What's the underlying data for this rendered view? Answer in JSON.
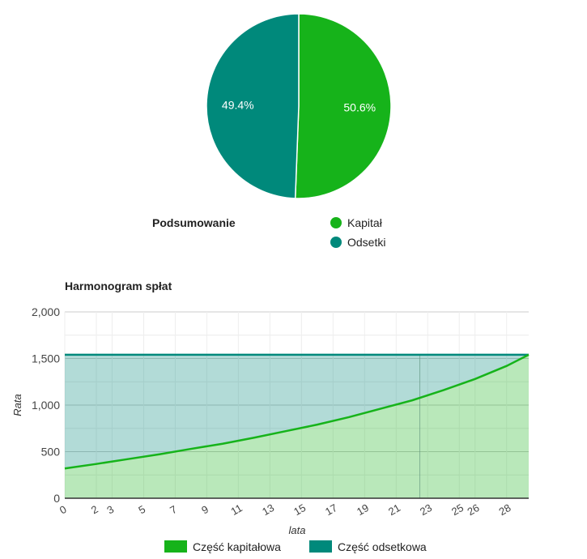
{
  "chart_data": [
    {
      "type": "pie",
      "title": "Podsumowanie",
      "legend_position": "right",
      "slices": [
        {
          "label": "Kapitał",
          "value": 50.6,
          "display": "50.6%",
          "color": "#16b31a"
        },
        {
          "label": "Odsetki",
          "value": 49.4,
          "display": "49.4%",
          "color": "#00897b"
        }
      ]
    },
    {
      "type": "area",
      "title": "Harmonogram spłat",
      "xlabel": "lata",
      "ylabel": "Rata",
      "xlim": [
        0,
        29.4
      ],
      "ylim": [
        0,
        2000
      ],
      "y_ticks": [
        0,
        500,
        1000,
        1500,
        2000
      ],
      "y_tick_labels": [
        "0",
        "500",
        "1,000",
        "1,500",
        "2,000"
      ],
      "x_ticks": [
        0,
        2,
        3,
        5,
        7,
        9,
        11,
        13,
        15,
        17,
        19,
        21,
        23,
        25,
        26,
        28
      ],
      "x_tick_labels": [
        "0",
        "2",
        "3",
        "5",
        "7",
        "9",
        "11",
        "13",
        "15",
        "17",
        "19",
        "21",
        "23",
        "25",
        "26",
        "28"
      ],
      "grid": true,
      "legend_position": "bottom",
      "stacked": true,
      "x": [
        0,
        2,
        4,
        6,
        8,
        10,
        12,
        14,
        16,
        18,
        20,
        22,
        24,
        26,
        28,
        29.4
      ],
      "series": [
        {
          "name": "Część kapitałowa",
          "color": "#16b31a",
          "values": [
            320,
            368,
            420,
            472,
            530,
            585,
            650,
            720,
            790,
            870,
            960,
            1050,
            1160,
            1280,
            1420,
            1540
          ]
        },
        {
          "name": "Część odsetkowa",
          "color": "#00897b",
          "values": [
            1220,
            1172,
            1120,
            1068,
            1010,
            955,
            890,
            820,
            750,
            670,
            580,
            490,
            380,
            260,
            120,
            0
          ]
        }
      ],
      "marker_x": 22.5
    }
  ]
}
